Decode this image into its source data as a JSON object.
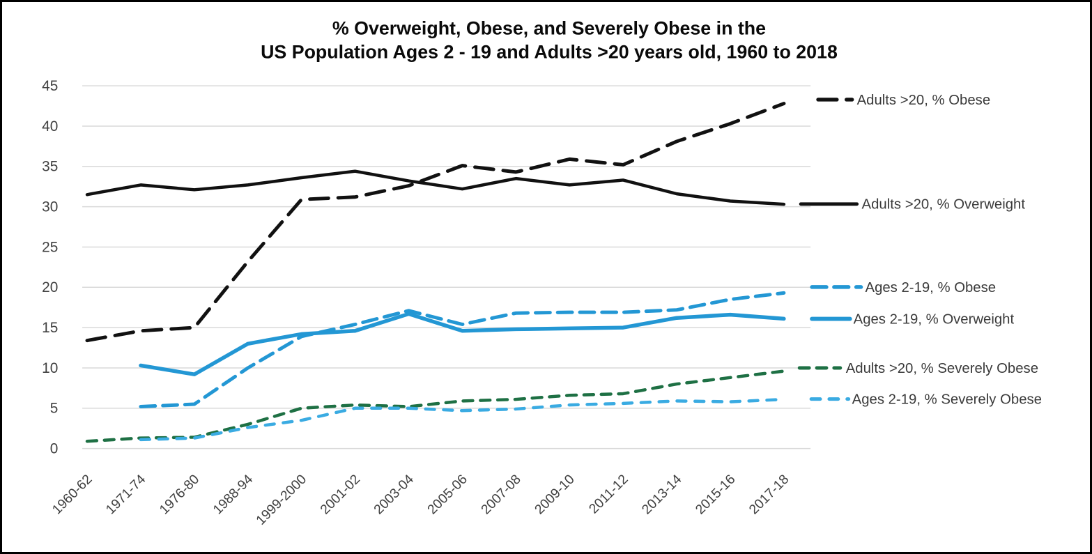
{
  "window": {
    "background": "#ffffff",
    "border_color": "#000000"
  },
  "chart_data": {
    "type": "line",
    "title_line1": "% Overweight, Obese, and Severely Obese in the",
    "title_line2": "US Population Ages 2 - 19 and Adults >20 years old, 1960 to 2018",
    "grid": true,
    "legend_position": "right-at-line-ends",
    "categories": [
      "1960-62",
      "1971-74",
      "1976-80",
      "1988-94",
      "1999-2000",
      "2001-02",
      "2003-04",
      "2005-06",
      "2007-08",
      "2009-10",
      "2011-12",
      "2013-14",
      "2015-16",
      "2017-18"
    ],
    "y_axis": {
      "min": 0,
      "max": 45,
      "step": 5,
      "tick_labels": [
        "0",
        "5",
        "10",
        "15",
        "20",
        "25",
        "30",
        "35",
        "40",
        "45"
      ]
    },
    "colors": {
      "black_series": "#111111",
      "blue_series": "#2397d4",
      "green_series": "#1e7044",
      "light_blue_series": "#3aabe2",
      "gridline": "#d9d9d9",
      "axis_text": "#404040",
      "legend_text": "#3a3a3a"
    },
    "series": [
      {
        "key": "adults-obese",
        "name": "Adults >20, % Obese",
        "color": "#111111",
        "line_style": "dashed",
        "values": [
          13.4,
          14.6,
          15.0,
          23.2,
          30.9,
          31.2,
          32.6,
          35.1,
          34.3,
          35.9,
          35.2,
          38.1,
          40.3,
          42.8
        ]
      },
      {
        "key": "adults-overweight",
        "name": "Adults >20, % Overweight",
        "color": "#111111",
        "line_style": "solid",
        "values": [
          31.5,
          32.7,
          32.1,
          32.7,
          33.6,
          34.4,
          33.2,
          32.2,
          33.5,
          32.7,
          33.3,
          31.6,
          30.7,
          30.3
        ]
      },
      {
        "key": "kids-obese",
        "name": "Ages 2-19, % Obese",
        "color": "#2397d4",
        "line_style": "dashed",
        "values": [
          null,
          5.2,
          5.5,
          10.0,
          13.9,
          15.4,
          17.1,
          15.4,
          16.8,
          16.9,
          16.9,
          17.2,
          18.5,
          19.3
        ]
      },
      {
        "key": "kids-overweight",
        "name": "Ages 2-19, % Overweight",
        "color": "#2397d4",
        "line_style": "solid",
        "values": [
          null,
          10.3,
          9.2,
          13.0,
          14.2,
          14.6,
          16.7,
          14.6,
          14.8,
          14.9,
          15.0,
          16.2,
          16.6,
          16.1
        ]
      },
      {
        "key": "adults-severe",
        "name": "Adults >20, % Severely Obese",
        "color": "#1e7044",
        "line_style": "dashed",
        "values": [
          0.9,
          1.3,
          1.4,
          3.0,
          5.0,
          5.4,
          5.2,
          5.9,
          6.1,
          6.6,
          6.8,
          8.0,
          8.8,
          9.6
        ]
      },
      {
        "key": "kids-severe",
        "name": "Ages 2-19, % Severely Obese",
        "color": "#3aabe2",
        "line_style": "dashed",
        "values": [
          null,
          1.1,
          1.3,
          2.6,
          3.5,
          5.0,
          5.0,
          4.7,
          4.9,
          5.4,
          5.6,
          5.9,
          5.8,
          6.1
        ]
      }
    ]
  }
}
